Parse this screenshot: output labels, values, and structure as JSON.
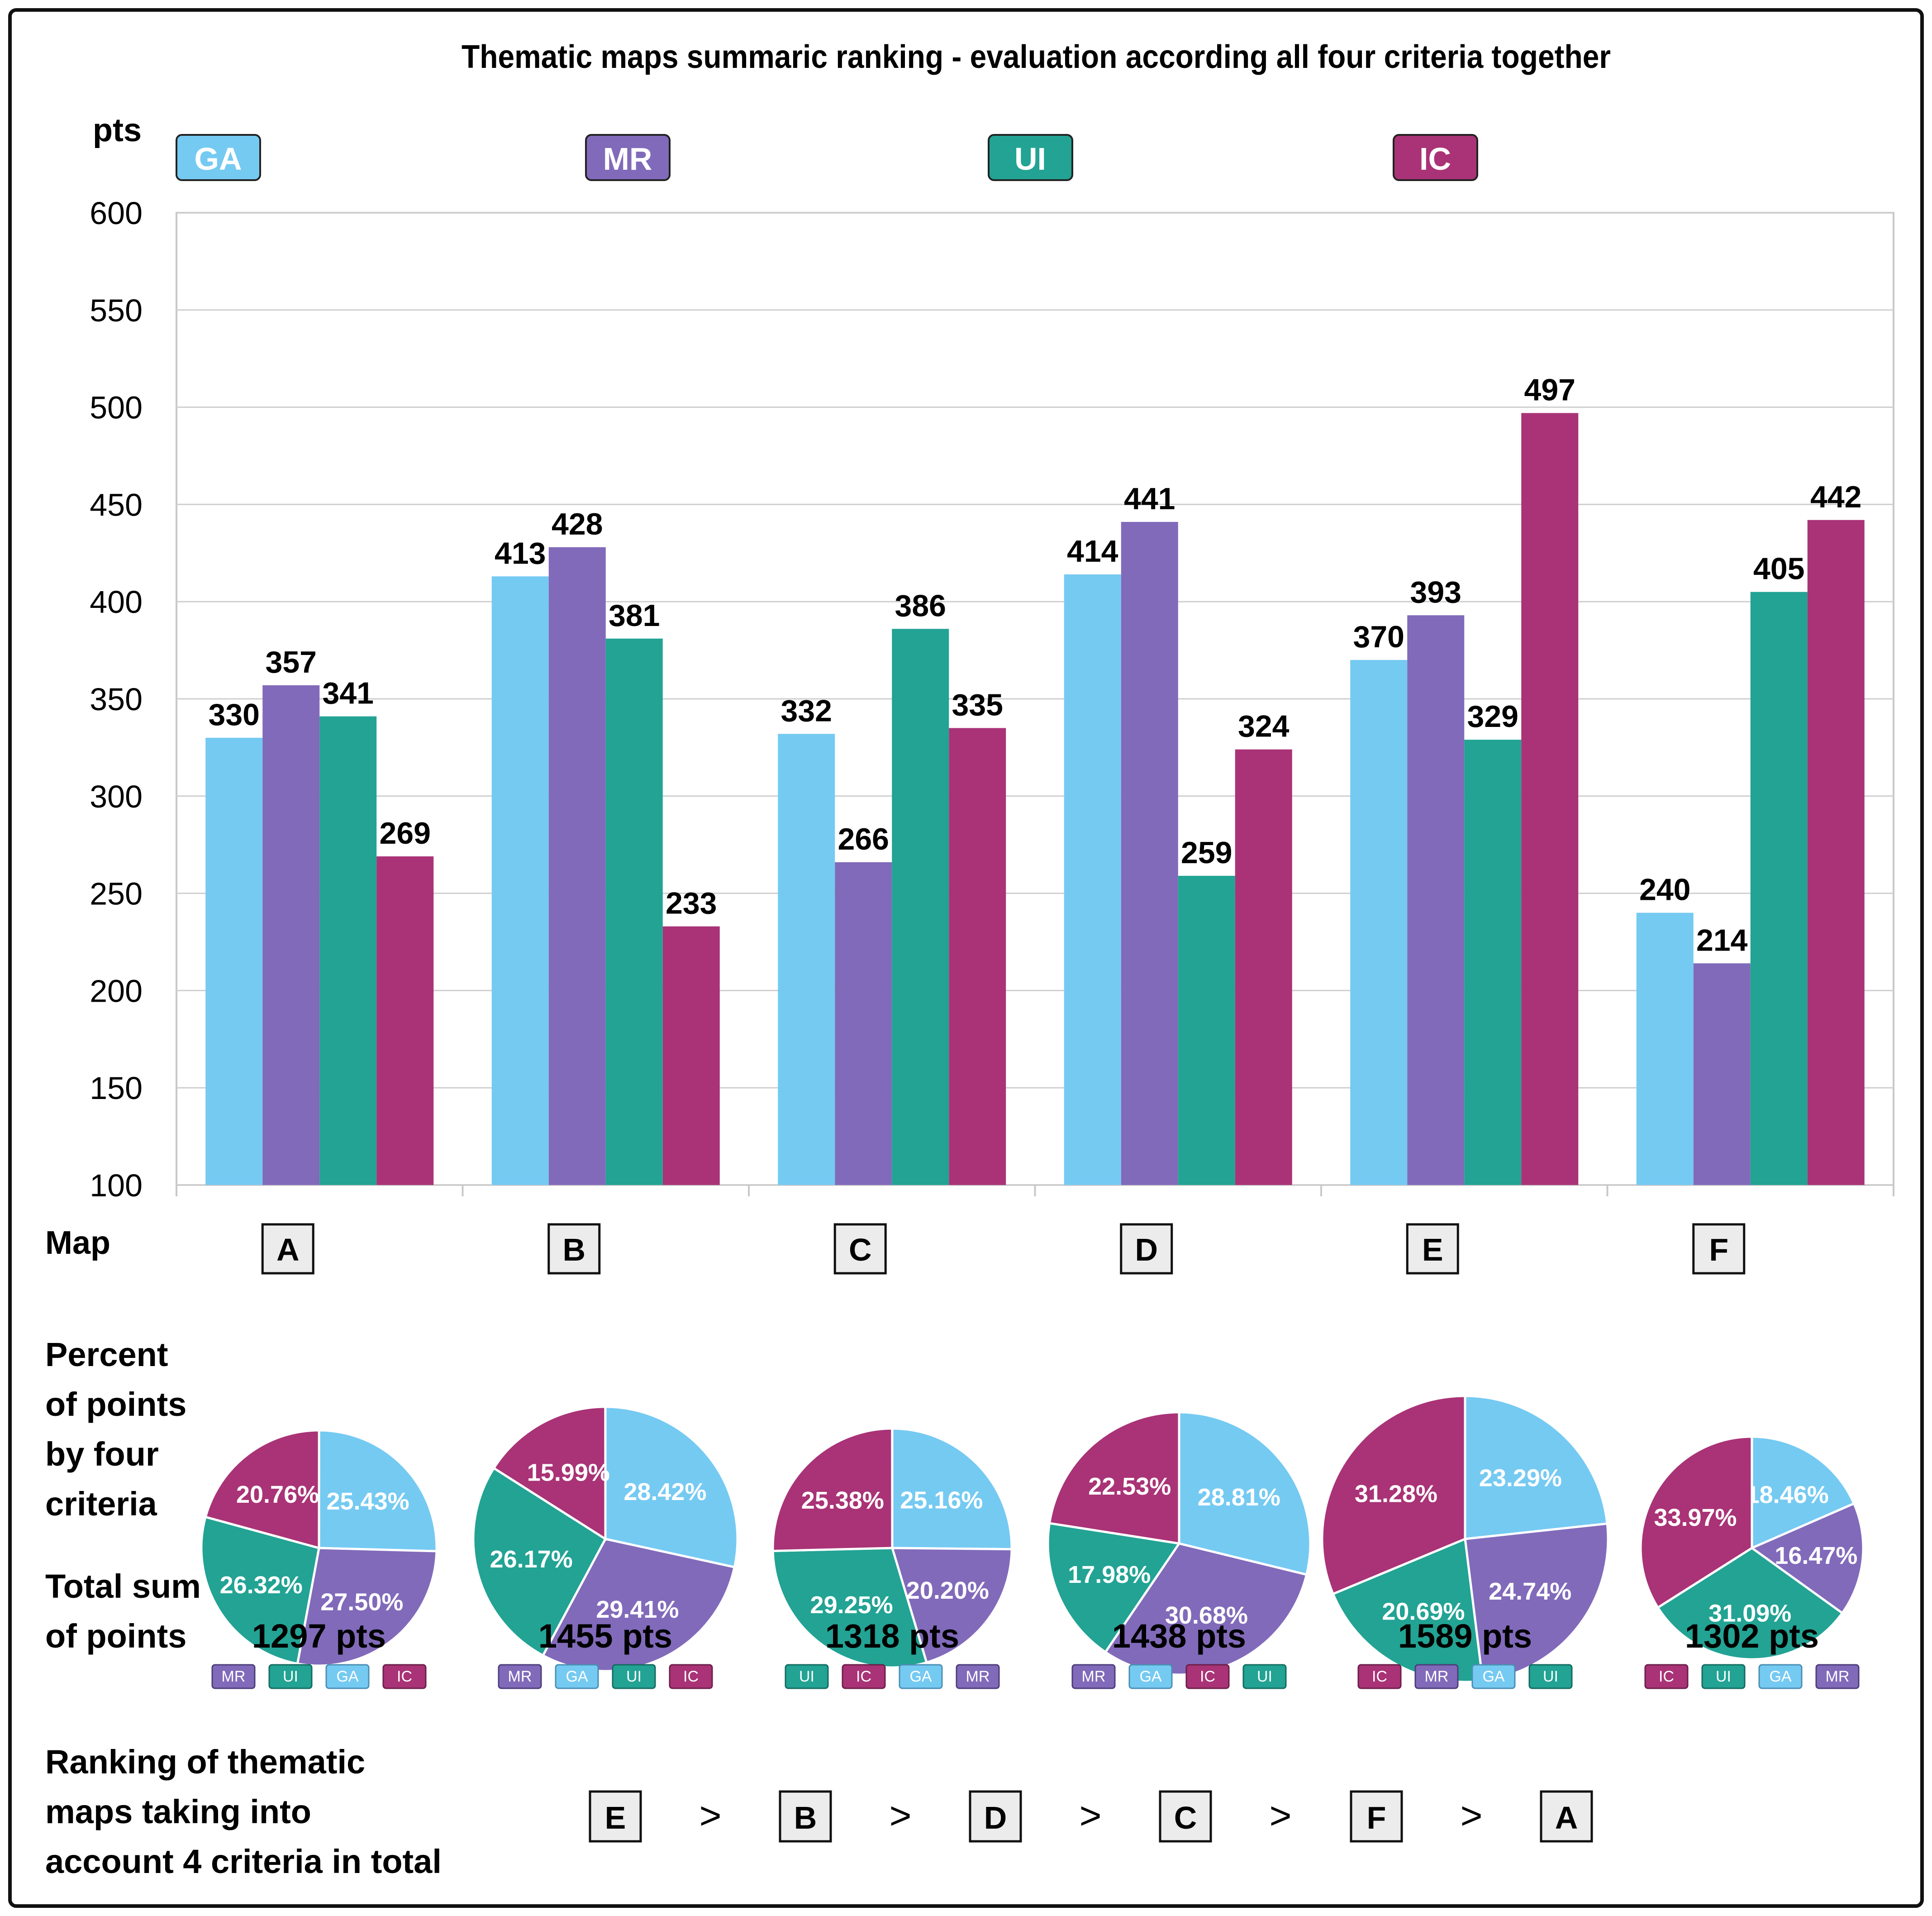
{
  "chart_data": {
    "type": "bar",
    "title": "Thematic maps summaric ranking - evaluation according all four criteria together",
    "ylabel": "pts",
    "xlabel": "Map",
    "ylim": [
      100,
      600
    ],
    "yticks": [
      100,
      150,
      200,
      250,
      300,
      350,
      400,
      450,
      500,
      550,
      600
    ],
    "grid": true,
    "legend_position": "top",
    "categories": [
      "A",
      "B",
      "C",
      "D",
      "E",
      "F"
    ],
    "series": [
      {
        "name": "GA",
        "color": "#75CAF2",
        "values": [
          330,
          413,
          332,
          414,
          370,
          240
        ]
      },
      {
        "name": "MR",
        "color": "#816ABA",
        "values": [
          357,
          428,
          266,
          441,
          393,
          214
        ]
      },
      {
        "name": "UI",
        "color": "#22A394",
        "values": [
          341,
          381,
          386,
          259,
          329,
          405
        ]
      },
      {
        "name": "IC",
        "color": "#A93376",
        "values": [
          269,
          233,
          335,
          324,
          497,
          442
        ]
      }
    ],
    "pies": [
      {
        "map": "A",
        "total": "1297 pts",
        "slices": [
          {
            "name": "GA",
            "pct": 25.43,
            "label": "25.43%"
          },
          {
            "name": "MR",
            "pct": 27.5,
            "label": "27.50%"
          },
          {
            "name": "UI",
            "pct": 26.32,
            "label": "26.32%"
          },
          {
            "name": "IC",
            "pct": 20.76,
            "label": "20.76%"
          }
        ],
        "order": [
          "MR",
          "UI",
          "GA",
          "IC"
        ]
      },
      {
        "map": "B",
        "total": "1455 pts",
        "slices": [
          {
            "name": "GA",
            "pct": 28.42,
            "label": "28.42%"
          },
          {
            "name": "MR",
            "pct": 29.41,
            "label": "29.41%"
          },
          {
            "name": "UI",
            "pct": 26.17,
            "label": "26.17%"
          },
          {
            "name": "IC",
            "pct": 15.99,
            "label": "15.99%"
          }
        ],
        "order": [
          "MR",
          "GA",
          "UI",
          "IC"
        ]
      },
      {
        "map": "C",
        "total": "1318 pts",
        "slices": [
          {
            "name": "GA",
            "pct": 25.16,
            "label": "25.16%"
          },
          {
            "name": "MR",
            "pct": 20.2,
            "label": "20.20%"
          },
          {
            "name": "UI",
            "pct": 29.25,
            "label": "29.25%"
          },
          {
            "name": "IC",
            "pct": 25.38,
            "label": "25.38%"
          }
        ],
        "order": [
          "UI",
          "IC",
          "GA",
          "MR"
        ]
      },
      {
        "map": "D",
        "total": "1438 pts",
        "slices": [
          {
            "name": "GA",
            "pct": 28.81,
            "label": "28.81%"
          },
          {
            "name": "MR",
            "pct": 30.68,
            "label": "30.68%"
          },
          {
            "name": "UI",
            "pct": 17.98,
            "label": "17.98%"
          },
          {
            "name": "IC",
            "pct": 22.53,
            "label": "22.53%"
          }
        ],
        "order": [
          "MR",
          "GA",
          "IC",
          "UI"
        ]
      },
      {
        "map": "E",
        "total": "1589 pts",
        "slices": [
          {
            "name": "GA",
            "pct": 23.29,
            "label": "23.29%"
          },
          {
            "name": "MR",
            "pct": 24.74,
            "label": "24.74%"
          },
          {
            "name": "UI",
            "pct": 20.69,
            "label": "20.69%"
          },
          {
            "name": "IC",
            "pct": 31.28,
            "label": "31.28%"
          }
        ],
        "order": [
          "IC",
          "MR",
          "GA",
          "UI"
        ]
      },
      {
        "map": "F",
        "total": "1302 pts",
        "slices": [
          {
            "name": "GA",
            "pct": 18.46,
            "label": "18.46%"
          },
          {
            "name": "MR",
            "pct": 16.47,
            "label": "16.47%"
          },
          {
            "name": "UI",
            "pct": 31.09,
            "label": "31.09%"
          },
          {
            "name": "IC",
            "pct": 33.97,
            "label": "33.97%"
          }
        ],
        "order": [
          "IC",
          "UI",
          "GA",
          "MR"
        ]
      }
    ],
    "row_labels": {
      "map": "Map",
      "percent": [
        "Percent",
        "of points",
        "by four",
        "criteria"
      ],
      "total": [
        "Total sum",
        "of points"
      ],
      "ranking": [
        "Ranking of thematic",
        "maps taking into",
        "account 4 criteria in total"
      ]
    },
    "ranking": [
      "E",
      "B",
      "D",
      "C",
      "F",
      "A"
    ],
    "ranking_separator": ">"
  }
}
